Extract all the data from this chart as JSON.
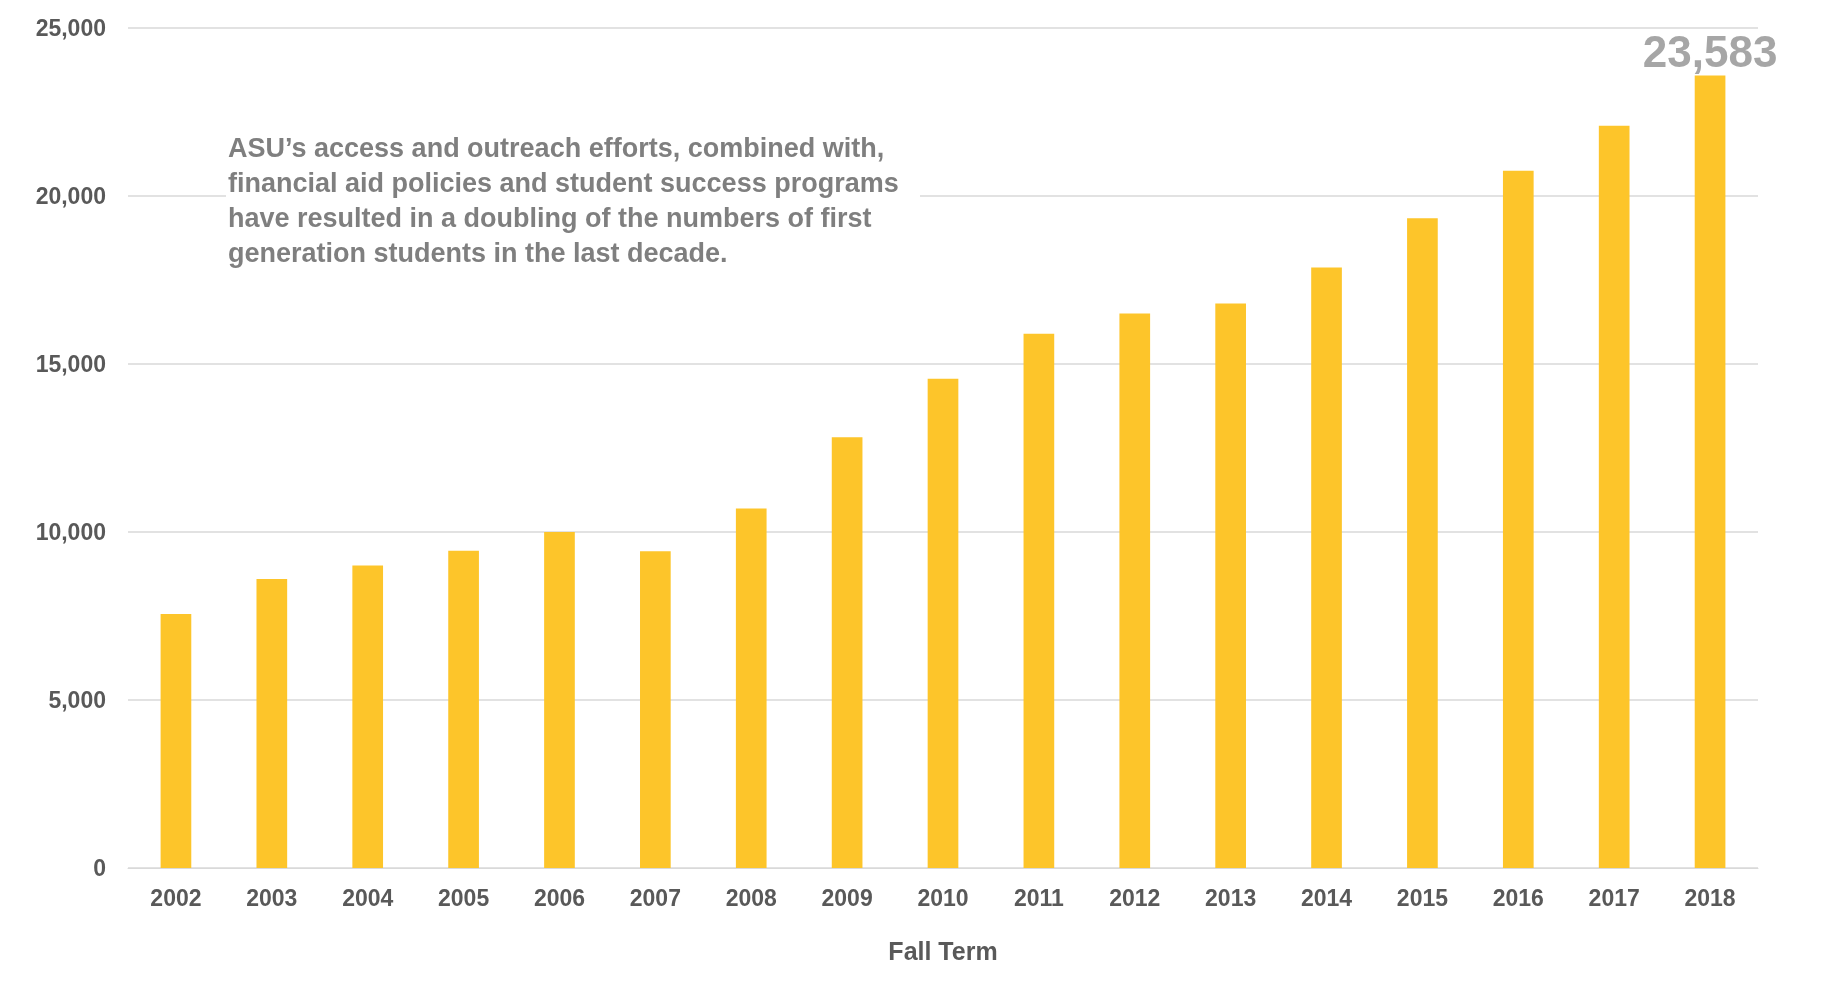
{
  "chart_data": {
    "type": "bar",
    "xlabel": "Fall Term",
    "categories": [
      "2002",
      "2003",
      "2004",
      "2005",
      "2006",
      "2007",
      "2008",
      "2009",
      "2010",
      "2011",
      "2012",
      "2013",
      "2014",
      "2015",
      "2016",
      "2017",
      "2018"
    ],
    "values": [
      7560,
      8600,
      9000,
      9440,
      10000,
      9430,
      10700,
      12820,
      14560,
      15900,
      16500,
      16800,
      17870,
      19340,
      20750,
      22090,
      23583
    ],
    "value_labels": [
      null,
      null,
      null,
      null,
      null,
      null,
      null,
      null,
      null,
      null,
      null,
      null,
      null,
      null,
      null,
      null,
      "23,583"
    ],
    "color": "#fdc52a",
    "ylim": [
      0,
      25000
    ],
    "yticks": [
      {
        "value": 0,
        "label": "0"
      },
      {
        "value": 5000,
        "label": "5,000"
      },
      {
        "value": 10000,
        "label": "10,000"
      },
      {
        "value": 15000,
        "label": "15,000"
      },
      {
        "value": 20000,
        "label": "20,000"
      },
      {
        "value": 25000,
        "label": "25,000"
      }
    ],
    "grid": "y",
    "annotations": [
      "ASU’s access and outreach efforts, combined with, financial aid policies and student success programs have resulted in a doubling of the numbers of first generation students in the last decade."
    ]
  }
}
